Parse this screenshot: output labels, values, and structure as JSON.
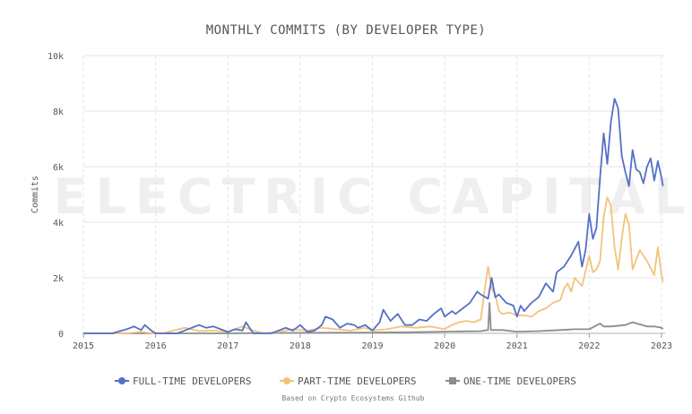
{
  "chart_data": {
    "type": "line",
    "title": "MONTHLY COMMITS (BY DEVELOPER TYPE)",
    "ylabel": "Commits",
    "xlabel": "",
    "xlim": [
      2015,
      2023.05
    ],
    "ylim": [
      0,
      10000
    ],
    "x_ticks": [
      "2015",
      "2016",
      "2017",
      "2018",
      "2019",
      "2020",
      "2021",
      "2022",
      "2023"
    ],
    "y_ticks": [
      "0",
      "2k",
      "4k",
      "6k",
      "8k",
      "10k"
    ],
    "grid": true,
    "legend_position": "bottom",
    "source": "Based on Crypto Ecosystems Github",
    "watermark": "ELECTRIC CAPITAL",
    "series": [
      {
        "name": "FULL-TIME DEVELOPERS",
        "color": "#5470c6",
        "x": [
          2015.0,
          2015.4,
          2015.6,
          2015.7,
          2015.8,
          2015.85,
          2015.95,
          2016.0,
          2016.15,
          2016.3,
          2016.5,
          2016.6,
          2016.7,
          2016.8,
          2016.9,
          2017.0,
          2017.1,
          2017.2,
          2017.25,
          2017.3,
          2017.35,
          2017.45,
          2017.6,
          2017.8,
          2017.9,
          2018.0,
          2018.1,
          2018.2,
          2018.3,
          2018.35,
          2018.45,
          2018.55,
          2018.65,
          2018.75,
          2018.8,
          2018.9,
          2019.0,
          2019.1,
          2019.15,
          2019.25,
          2019.35,
          2019.45,
          2019.55,
          2019.65,
          2019.75,
          2019.85,
          2019.95,
          2020.0,
          2020.1,
          2020.15,
          2020.25,
          2020.35,
          2020.45,
          2020.5,
          2020.6,
          2020.65,
          2020.7,
          2020.75,
          2020.85,
          2020.95,
          2021.0,
          2021.05,
          2021.1,
          2021.2,
          2021.3,
          2021.4,
          2021.5,
          2021.55,
          2021.65,
          2021.75,
          2021.85,
          2021.9,
          2021.95,
          2022.0,
          2022.05,
          2022.1,
          2022.15,
          2022.2,
          2022.25,
          2022.3,
          2022.35,
          2022.4,
          2022.45,
          2022.5,
          2022.55,
          2022.6,
          2022.65,
          2022.7,
          2022.75,
          2022.8,
          2022.85,
          2022.9,
          2022.95,
          2023.0,
          2023.02
        ],
        "values": [
          0,
          0,
          150,
          250,
          120,
          300,
          80,
          0,
          0,
          0,
          200,
          300,
          200,
          250,
          150,
          50,
          150,
          100,
          400,
          200,
          0,
          0,
          0,
          200,
          100,
          300,
          50,
          100,
          300,
          600,
          500,
          200,
          350,
          300,
          200,
          300,
          100,
          400,
          850,
          450,
          700,
          300,
          300,
          500,
          450,
          700,
          900,
          600,
          800,
          700,
          900,
          1100,
          1500,
          1400,
          1250,
          2000,
          1300,
          1400,
          1100,
          1000,
          600,
          1000,
          800,
          1100,
          1300,
          1800,
          1500,
          2200,
          2400,
          2800,
          3300,
          2400,
          3000,
          4300,
          3400,
          3800,
          5600,
          7200,
          6100,
          7600,
          8450,
          8100,
          6400,
          5800,
          5300,
          6600,
          5900,
          5800,
          5400,
          6000,
          6300,
          5500,
          6200,
          5600,
          5300
        ]
      },
      {
        "name": "PART-TIME DEVELOPERS",
        "color": "#f2c37a",
        "x": [
          2015.0,
          2015.6,
          2015.8,
          2015.95,
          2016.1,
          2016.4,
          2016.5,
          2016.6,
          2016.8,
          2017.0,
          2017.2,
          2017.35,
          2017.5,
          2017.7,
          2017.9,
          2018.1,
          2018.3,
          2018.5,
          2018.7,
          2018.9,
          2019.0,
          2019.2,
          2019.4,
          2019.6,
          2019.8,
          2020.0,
          2020.1,
          2020.2,
          2020.3,
          2020.4,
          2020.5,
          2020.55,
          2020.6,
          2020.65,
          2020.7,
          2020.75,
          2020.8,
          2020.9,
          2021.0,
          2021.1,
          2021.2,
          2021.3,
          2021.4,
          2021.5,
          2021.6,
          2021.65,
          2021.7,
          2021.75,
          2021.8,
          2021.9,
          2022.0,
          2022.05,
          2022.1,
          2022.15,
          2022.2,
          2022.25,
          2022.3,
          2022.35,
          2022.4,
          2022.45,
          2022.5,
          2022.55,
          2022.6,
          2022.7,
          2022.8,
          2022.9,
          2022.95,
          2023.0,
          2023.02
        ],
        "values": [
          0,
          0,
          50,
          0,
          0,
          200,
          150,
          80,
          100,
          50,
          250,
          100,
          0,
          50,
          150,
          100,
          200,
          150,
          100,
          200,
          100,
          150,
          250,
          200,
          250,
          150,
          300,
          400,
          450,
          400,
          500,
          1500,
          2400,
          1600,
          1400,
          800,
          700,
          750,
          650,
          650,
          600,
          800,
          900,
          1100,
          1200,
          1600,
          1800,
          1500,
          2000,
          1700,
          2800,
          2200,
          2300,
          2600,
          4200,
          4900,
          4600,
          3100,
          2300,
          3400,
          4300,
          3900,
          2300,
          3000,
          2600,
          2100,
          3100,
          2100,
          1850
        ]
      },
      {
        "name": "ONE-TIME DEVELOPERS",
        "color": "#8c8c8c",
        "x": [
          2015.0,
          2016.0,
          2017.0,
          2018.0,
          2019.0,
          2019.5,
          2020.0,
          2020.25,
          2020.5,
          2020.6,
          2020.62,
          2020.64,
          2020.8,
          2021.0,
          2021.3,
          2021.6,
          2021.8,
          2022.0,
          2022.15,
          2022.2,
          2022.3,
          2022.5,
          2022.6,
          2022.8,
          2022.9,
          2023.0,
          2023.02
        ],
        "values": [
          0,
          0,
          0,
          20,
          30,
          40,
          60,
          70,
          80,
          120,
          1100,
          120,
          120,
          60,
          80,
          120,
          150,
          150,
          350,
          250,
          250,
          300,
          400,
          250,
          250,
          200,
          150
        ]
      }
    ]
  }
}
